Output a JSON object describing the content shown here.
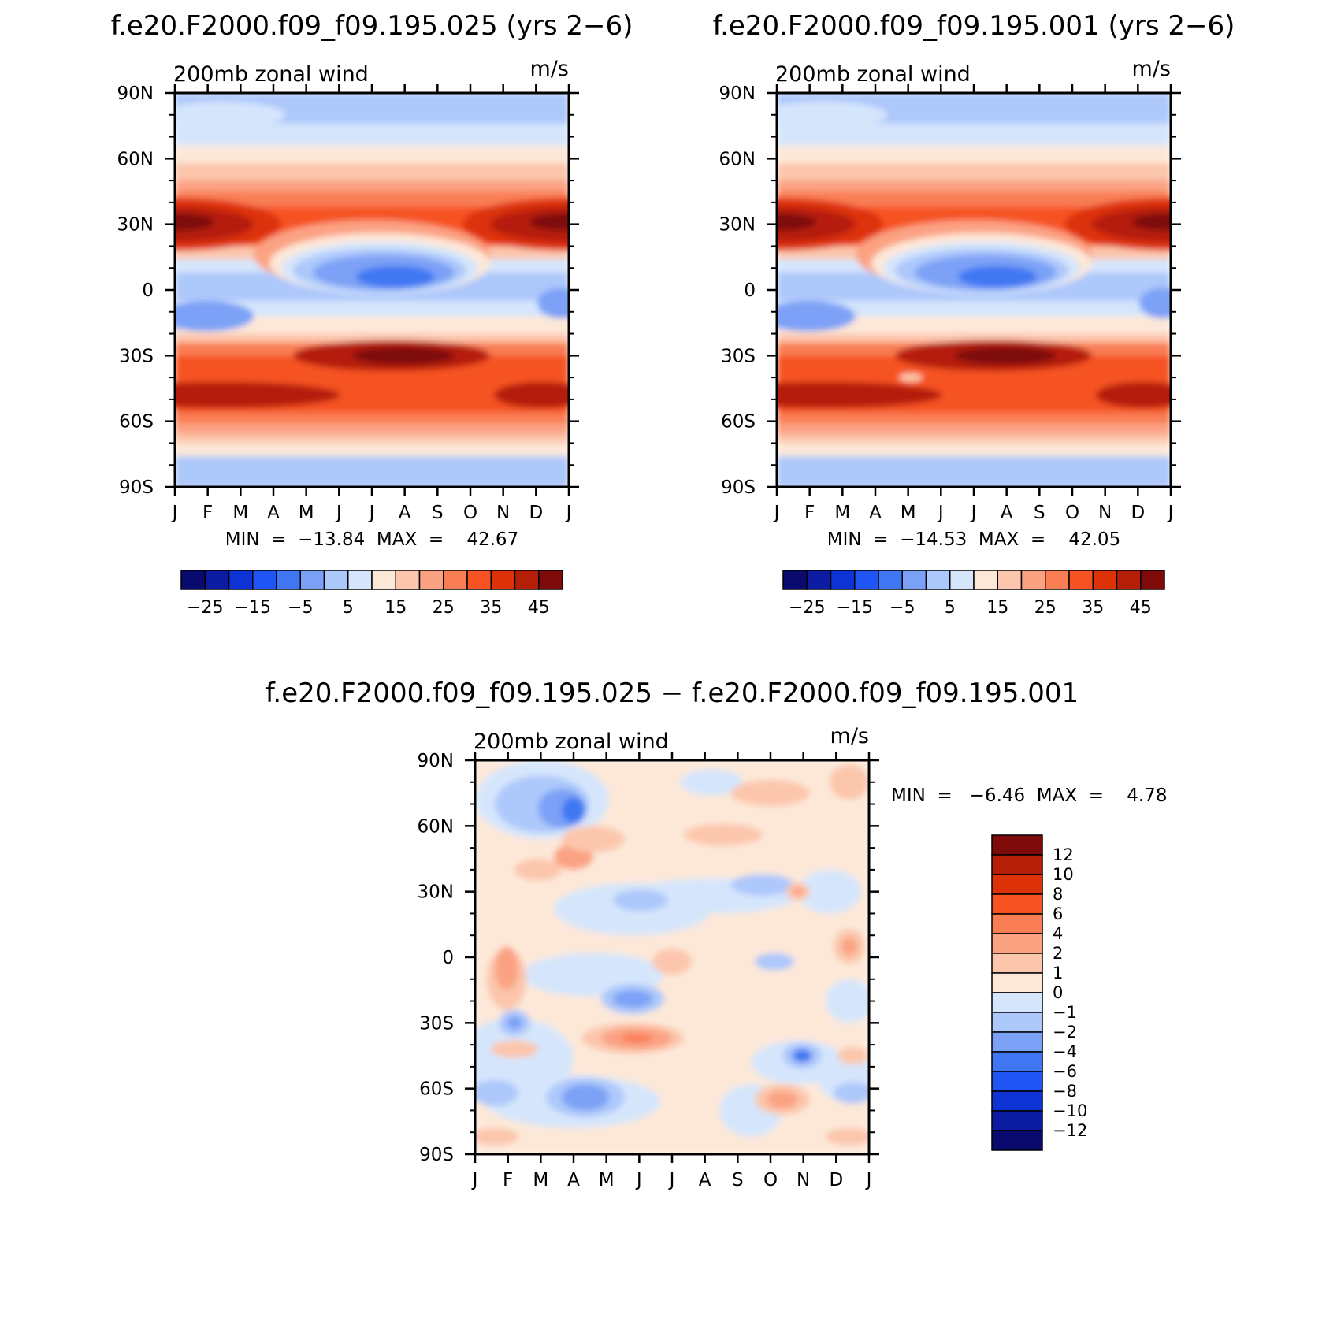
{
  "panels": [
    {
      "title": "f.e20.F2000.f09_f09.195.025 (yrs 2−6)",
      "subtitle": "200mb  zonal  wind",
      "units": "m/s",
      "minmax": "MIN  =  −13.84  MAX  =    42.67"
    },
    {
      "title": "f.e20.F2000.f09_f09.195.001 (yrs 2−6)",
      "subtitle": "200mb  zonal  wind",
      "units": "m/s",
      "minmax": "MIN  =  −14.53  MAX  =    42.05"
    },
    {
      "title": "f.e20.F2000.f09_f09.195.025 − f.e20.F2000.f09_f09.195.001",
      "subtitle": "200mb  zonal  wind",
      "units": "m/s",
      "minmax": "MIN  =   −6.46  MAX  =    4.78"
    }
  ],
  "axes": {
    "x_ticks": [
      "J",
      "F",
      "M",
      "A",
      "M",
      "J",
      "J",
      "A",
      "S",
      "O",
      "N",
      "D",
      "J"
    ],
    "y_ticks": [
      "90N",
      "60N",
      "30N",
      "0",
      "30S",
      "60S",
      "90S"
    ]
  },
  "colorbar_full": {
    "colors": [
      "#0a0a6e",
      "#0b1ca3",
      "#0d33d4",
      "#1f55f5",
      "#3f77f2",
      "#7ba1f6",
      "#adc8fb",
      "#d5e6fc",
      "#fde8d8",
      "#fcc6ac",
      "#fba283",
      "#f97e54",
      "#f65222",
      "#dd3107",
      "#b51f07",
      "#7e0a0a"
    ],
    "labels": [
      "−25",
      "−15",
      "−5",
      "5",
      "15",
      "25",
      "35",
      "45"
    ]
  },
  "colorbar_diff": {
    "colors": [
      "#7e0a0a",
      "#b51f07",
      "#dd3107",
      "#f65222",
      "#f97e54",
      "#fba283",
      "#fcc6ac",
      "#fde8d8",
      "#d5e6fc",
      "#adc8fb",
      "#7ba1f6",
      "#3f77f2",
      "#1f55f5",
      "#0d33d4",
      "#0b1ca3",
      "#0a0a6e"
    ],
    "labels": [
      "12",
      "10",
      "8",
      "6",
      "4",
      "2",
      "1",
      "0",
      "−1",
      "−2",
      "−4",
      "−6",
      "−8",
      "−10",
      "−12"
    ]
  },
  "chart_data": [
    {
      "type": "heatmap",
      "title": "f.e20.F2000.f09_f09.195.025 (yrs 2−6)",
      "ylabel": "200mb zonal wind (m/s)",
      "x": [
        "J",
        "F",
        "M",
        "A",
        "M",
        "J",
        "J",
        "A",
        "S",
        "O",
        "N",
        "D",
        "J"
      ],
      "y": [
        90,
        60,
        30,
        0,
        -30,
        -60,
        -90
      ],
      "levels": [
        -25,
        -20,
        -15,
        -10,
        -5,
        0,
        5,
        10,
        15,
        20,
        25,
        30,
        35,
        40,
        45
      ],
      "min": -13.84,
      "max": 42.67,
      "features": [
        {
          "name": "NH jet",
          "lat": 30,
          "months": [
            "J",
            "F",
            "D"
          ],
          "value": 40
        },
        {
          "name": "tropical easterlies",
          "lat": 8,
          "months": [
            "J",
            "A"
          ],
          "value": -13
        },
        {
          "name": "SH jet",
          "lat": -30,
          "months": [
            "J",
            "A"
          ],
          "value": 42
        }
      ]
    },
    {
      "type": "heatmap",
      "title": "f.e20.F2000.f09_f09.195.001 (yrs 2−6)",
      "ylabel": "200mb zonal wind (m/s)",
      "x": [
        "J",
        "F",
        "M",
        "A",
        "M",
        "J",
        "J",
        "A",
        "S",
        "O",
        "N",
        "D",
        "J"
      ],
      "y": [
        90,
        60,
        30,
        0,
        -30,
        -60,
        -90
      ],
      "levels": [
        -25,
        -20,
        -15,
        -10,
        -5,
        0,
        5,
        10,
        15,
        20,
        25,
        30,
        35,
        40,
        45
      ],
      "min": -14.53,
      "max": 42.05,
      "features": [
        {
          "name": "NH jet",
          "lat": 30,
          "months": [
            "J",
            "F",
            "D"
          ],
          "value": 40
        },
        {
          "name": "tropical easterlies",
          "lat": 8,
          "months": [
            "J",
            "A"
          ],
          "value": -14
        },
        {
          "name": "SH jet",
          "lat": -30,
          "months": [
            "J",
            "A"
          ],
          "value": 41
        }
      ]
    },
    {
      "type": "heatmap",
      "title": "f.e20.F2000.f09_f09.195.025 − f.e20.F2000.f09_f09.195.001",
      "ylabel": "200mb zonal wind (m/s)",
      "x": [
        "J",
        "F",
        "M",
        "A",
        "M",
        "J",
        "J",
        "A",
        "S",
        "O",
        "N",
        "D",
        "J"
      ],
      "y": [
        90,
        60,
        30,
        0,
        -30,
        -60,
        -90
      ],
      "levels": [
        -12,
        -10,
        -8,
        -6,
        -4,
        -2,
        -1,
        0,
        1,
        2,
        4,
        6,
        8,
        10,
        12
      ],
      "min": -6.46,
      "max": 4.78
    }
  ]
}
